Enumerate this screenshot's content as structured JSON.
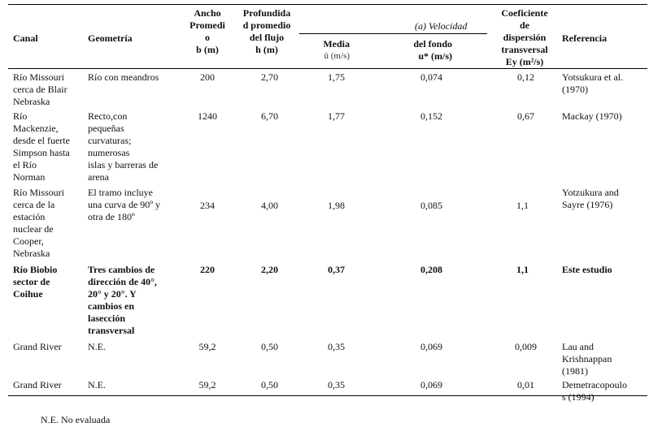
{
  "headers": {
    "canal": "Canal",
    "geometria": "Geometría",
    "ancho": [
      "Ancho",
      "Promedi",
      "o",
      "b (m)"
    ],
    "profundidad": [
      "Profundida",
      "d promedio",
      "del flujo",
      "h (m)"
    ],
    "velocidad_group": "(a)  Velocidad",
    "media": "Media",
    "media_unit": "ū (m/s)",
    "fondo": "del fondo",
    "fondo_unit": "u* (m/s)",
    "coef": [
      "Coeficiente",
      "de",
      "dispersión",
      "transversal"
    ],
    "coef_sym": "Ey (m²/s)",
    "referencia": "Referencia"
  },
  "rows": [
    {
      "canal": [
        "Río   Missouri",
        "cerca  de  Blair",
        "Nebraska"
      ],
      "geometria": [
        "Río con meandros"
      ],
      "ancho": "200",
      "profundidad": "2,70",
      "media": "1,75",
      "fondo": "0,074",
      "coef": "0,12",
      "referencia": [
        "Yotsukura et al.",
        "(1970)"
      ],
      "bold": false
    },
    {
      "canal": [
        "Río",
        "Mackenzie,",
        "desde el fuerte",
        "Simpson hasta",
        "el        Río",
        "Norman"
      ],
      "geometria": [
        "Recto,con",
        "pequeñas",
        "curvaturas;",
        "numerosas",
        "islas  y  barreras  de",
        "arena"
      ],
      "ancho": "1240",
      "profundidad": "6,70",
      "media": "1,77",
      "fondo": "0,152",
      "coef": "0,67",
      "referencia": [
        "Mackay (1970)"
      ],
      "bold": false
    },
    {
      "canal": [
        "Río  Missouri",
        "cerca   de   la",
        "estación",
        "nuclear      de",
        "Cooper,",
        "Nebraska"
      ],
      "geometria": [
        "El  tramo  incluye",
        "una curva de 90º y",
        "otra de 180º"
      ],
      "ancho": "234",
      "profundidad": "4,00",
      "media": "1,98",
      "fondo": "0,085",
      "coef": "1,1",
      "referencia": [
        "Yotzukura and",
        "Sayre (1976)"
      ],
      "bold": false
    },
    {
      "canal": [
        "Río    Biobio",
        "sector        de",
        "Coihue"
      ],
      "geometria": [
        "Tres  cambios  de",
        "dirección  de  40°,",
        "20°    y    20°.   Y",
        "cambios             en",
        "lasección",
        "transversal"
      ],
      "ancho": "220",
      "profundidad": "2,20",
      "media": "0,37",
      "fondo": "0,208",
      "coef": "1,1",
      "referencia": [
        "Este estudio"
      ],
      "bold": true
    },
    {
      "canal": [
        "Grand River"
      ],
      "geometria": [
        "N.E."
      ],
      "ancho": "59,2",
      "profundidad": "0,50",
      "media": "0,35",
      "fondo": "0,069",
      "coef": "0,009",
      "referencia": [
        "Lau and",
        "Krishnappan",
        "(1981)"
      ],
      "bold": false
    },
    {
      "canal": [
        "Grand River"
      ],
      "geometria": [
        "N.E."
      ],
      "ancho": "59,2",
      "profundidad": "0,50",
      "media": "0,35",
      "fondo": "0,069",
      "coef": "0,01",
      "referencia": [
        "Demetracopoulo",
        "s (1994)"
      ],
      "bold": false
    }
  ],
  "footnote": "N.E. No evaluada"
}
